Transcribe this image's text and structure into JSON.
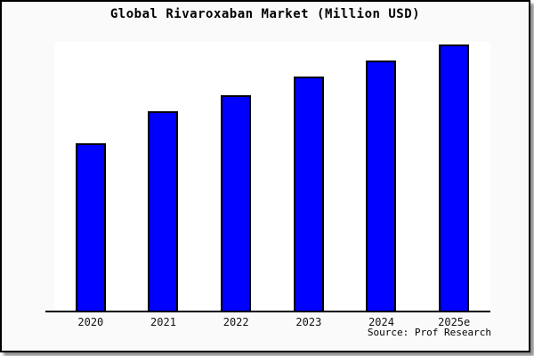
{
  "window": {
    "background": "#fafafa",
    "border_color": "#000000",
    "shadow_color": "#8f8f8f"
  },
  "title": "Global Rivaroxaban Market (Million USD)",
  "source": "Source: Prof Research",
  "chart_data": {
    "type": "bar",
    "title": "Global Rivaroxaban Market (Million USD)",
    "categories": [
      "2020",
      "2021",
      "2022",
      "2023",
      "2024",
      "2025e"
    ],
    "values": [
      63,
      75,
      81,
      88,
      94,
      100
    ],
    "values_note": "relative bar heights, tallest bar (2025e) = 100; no numeric value axis, gridlines or data labels are shown in the chart",
    "xlabel": "",
    "ylabel": "",
    "value_axis_visible": false,
    "gridlines": false,
    "legend_position": "none",
    "bar_color": "#0000ff",
    "bar_border_color": "#000000",
    "plot_background": "#ffffff",
    "source_label": "Source: Prof Research"
  }
}
